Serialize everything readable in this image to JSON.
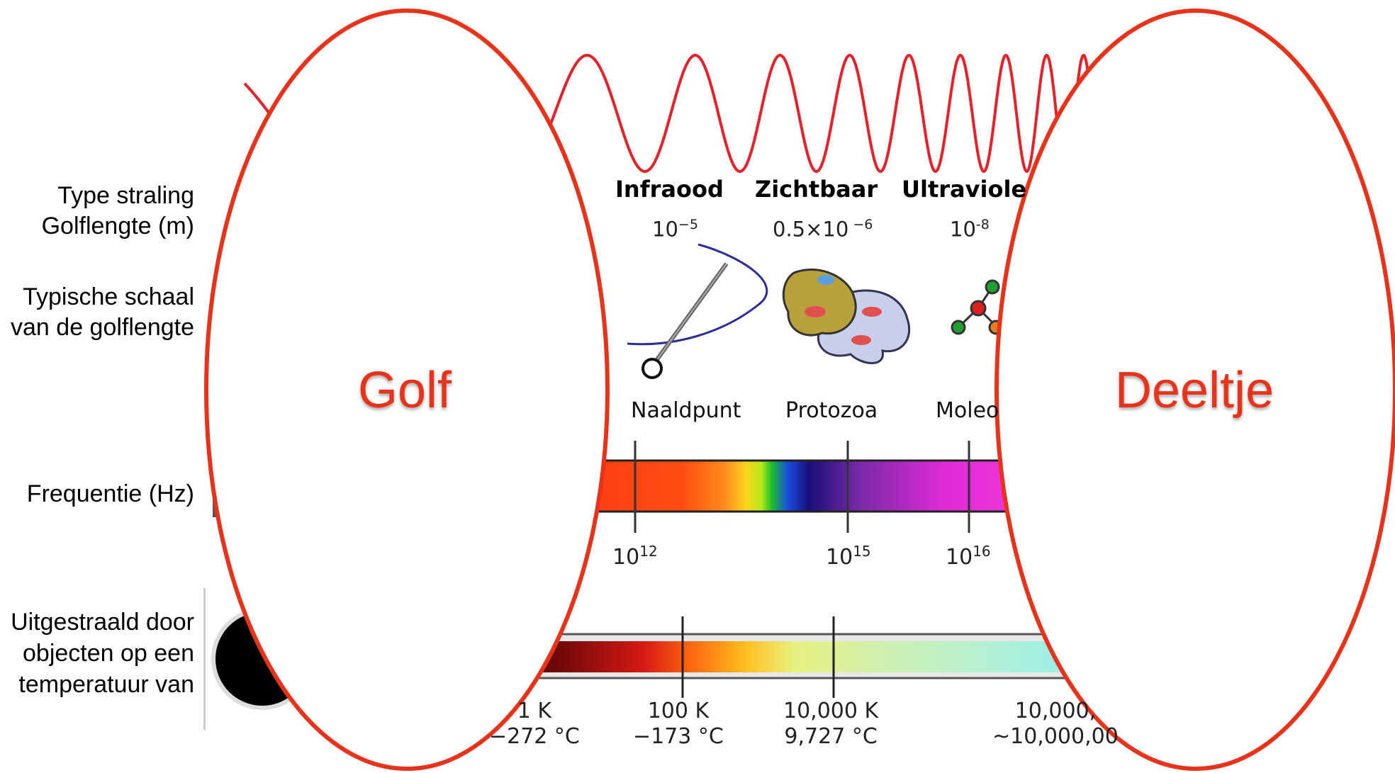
{
  "row_labels": {
    "type": "Type straling",
    "wavelength": "Golflengte (m)",
    "scale_line1": "Typische schaal",
    "scale_line2": "van de golflengte",
    "frequency": "Frequentie (Hz)",
    "temp_line1": "Uitgestraald door",
    "temp_line2": "objecten op een",
    "temp_line3": "temperatuur van"
  },
  "bands": [
    {
      "name": "Infraood",
      "wl_base": "10",
      "wl_exp": "−5",
      "scale": "Naaldpunt",
      "freq_exp": "12"
    },
    {
      "name": "Zichtbaar",
      "wl_base": "0.5×10",
      "wl_exp": " −6",
      "scale": "Protozoa",
      "freq_exp": "15"
    },
    {
      "name": "Ultraviole",
      "wl_base": "10",
      "wl_exp": "-8",
      "scale": "Moleo",
      "freq_exp": "16"
    }
  ],
  "frequency_base": "10",
  "temperatures": [
    {
      "k": "1 K",
      "c": "−272 °C"
    },
    {
      "k": "100 K",
      "c": "−173 °C"
    },
    {
      "k": "10,000 K",
      "c": "9,727 °C"
    },
    {
      "k": "10,000,",
      "c": "~10,000,00"
    }
  ],
  "overlay_labels": {
    "left": "Golf",
    "right": "Deeltje"
  },
  "colors": {
    "wave": "#e8202a",
    "ellipse": "#e8331a",
    "overlay_text": "#e8331a"
  },
  "icons": [
    "needle-icon",
    "protozoa-icon",
    "molecule-icon",
    "black-body-icon"
  ]
}
